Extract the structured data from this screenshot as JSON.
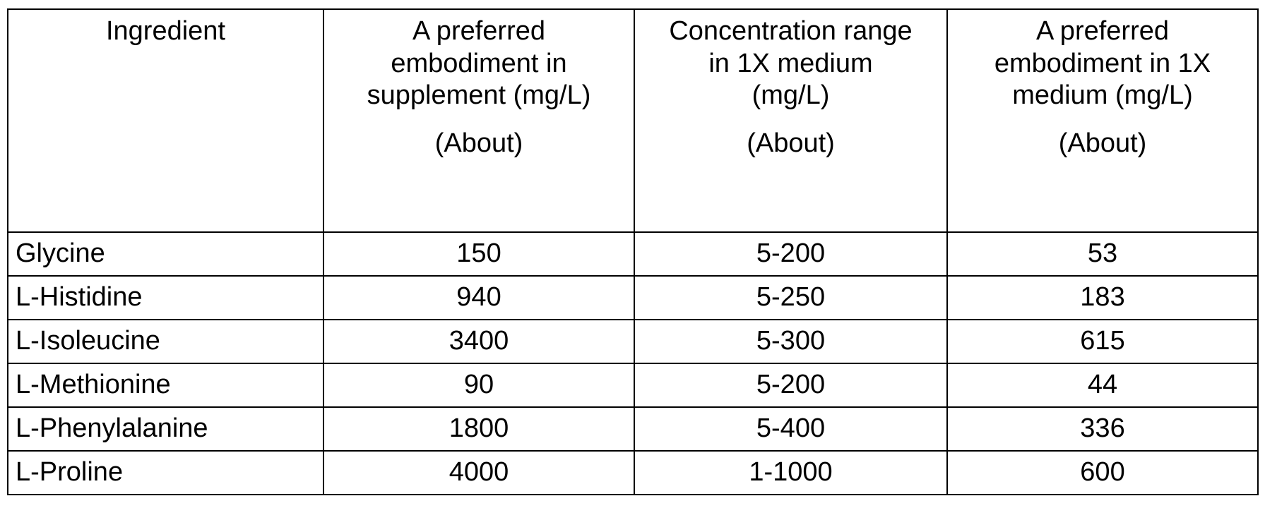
{
  "table": {
    "headers": [
      {
        "lines": [
          "Ingredient"
        ],
        "note": ""
      },
      {
        "lines": [
          "A preferred",
          "embodiment in",
          "supplement (mg/L)"
        ],
        "note": "(About)"
      },
      {
        "lines": [
          "Concentration range",
          "in 1X medium",
          "(mg/L)"
        ],
        "note": "(About)"
      },
      {
        "lines": [
          "A preferred",
          "embodiment in 1X",
          "medium (mg/L)"
        ],
        "note": "(About)"
      }
    ],
    "rows": [
      [
        "Glycine",
        "150",
        "5-200",
        "53"
      ],
      [
        "L-Histidine",
        "940",
        "5-250",
        "183"
      ],
      [
        "L-Isoleucine",
        "3400",
        "5-300",
        "615"
      ],
      [
        "L-Methionine",
        "90",
        "5-200",
        "44"
      ],
      [
        "L-Phenylalanine",
        "1800",
        "5-400",
        "336"
      ],
      [
        "L-Proline",
        "4000",
        "1-1000",
        "600"
      ]
    ]
  }
}
